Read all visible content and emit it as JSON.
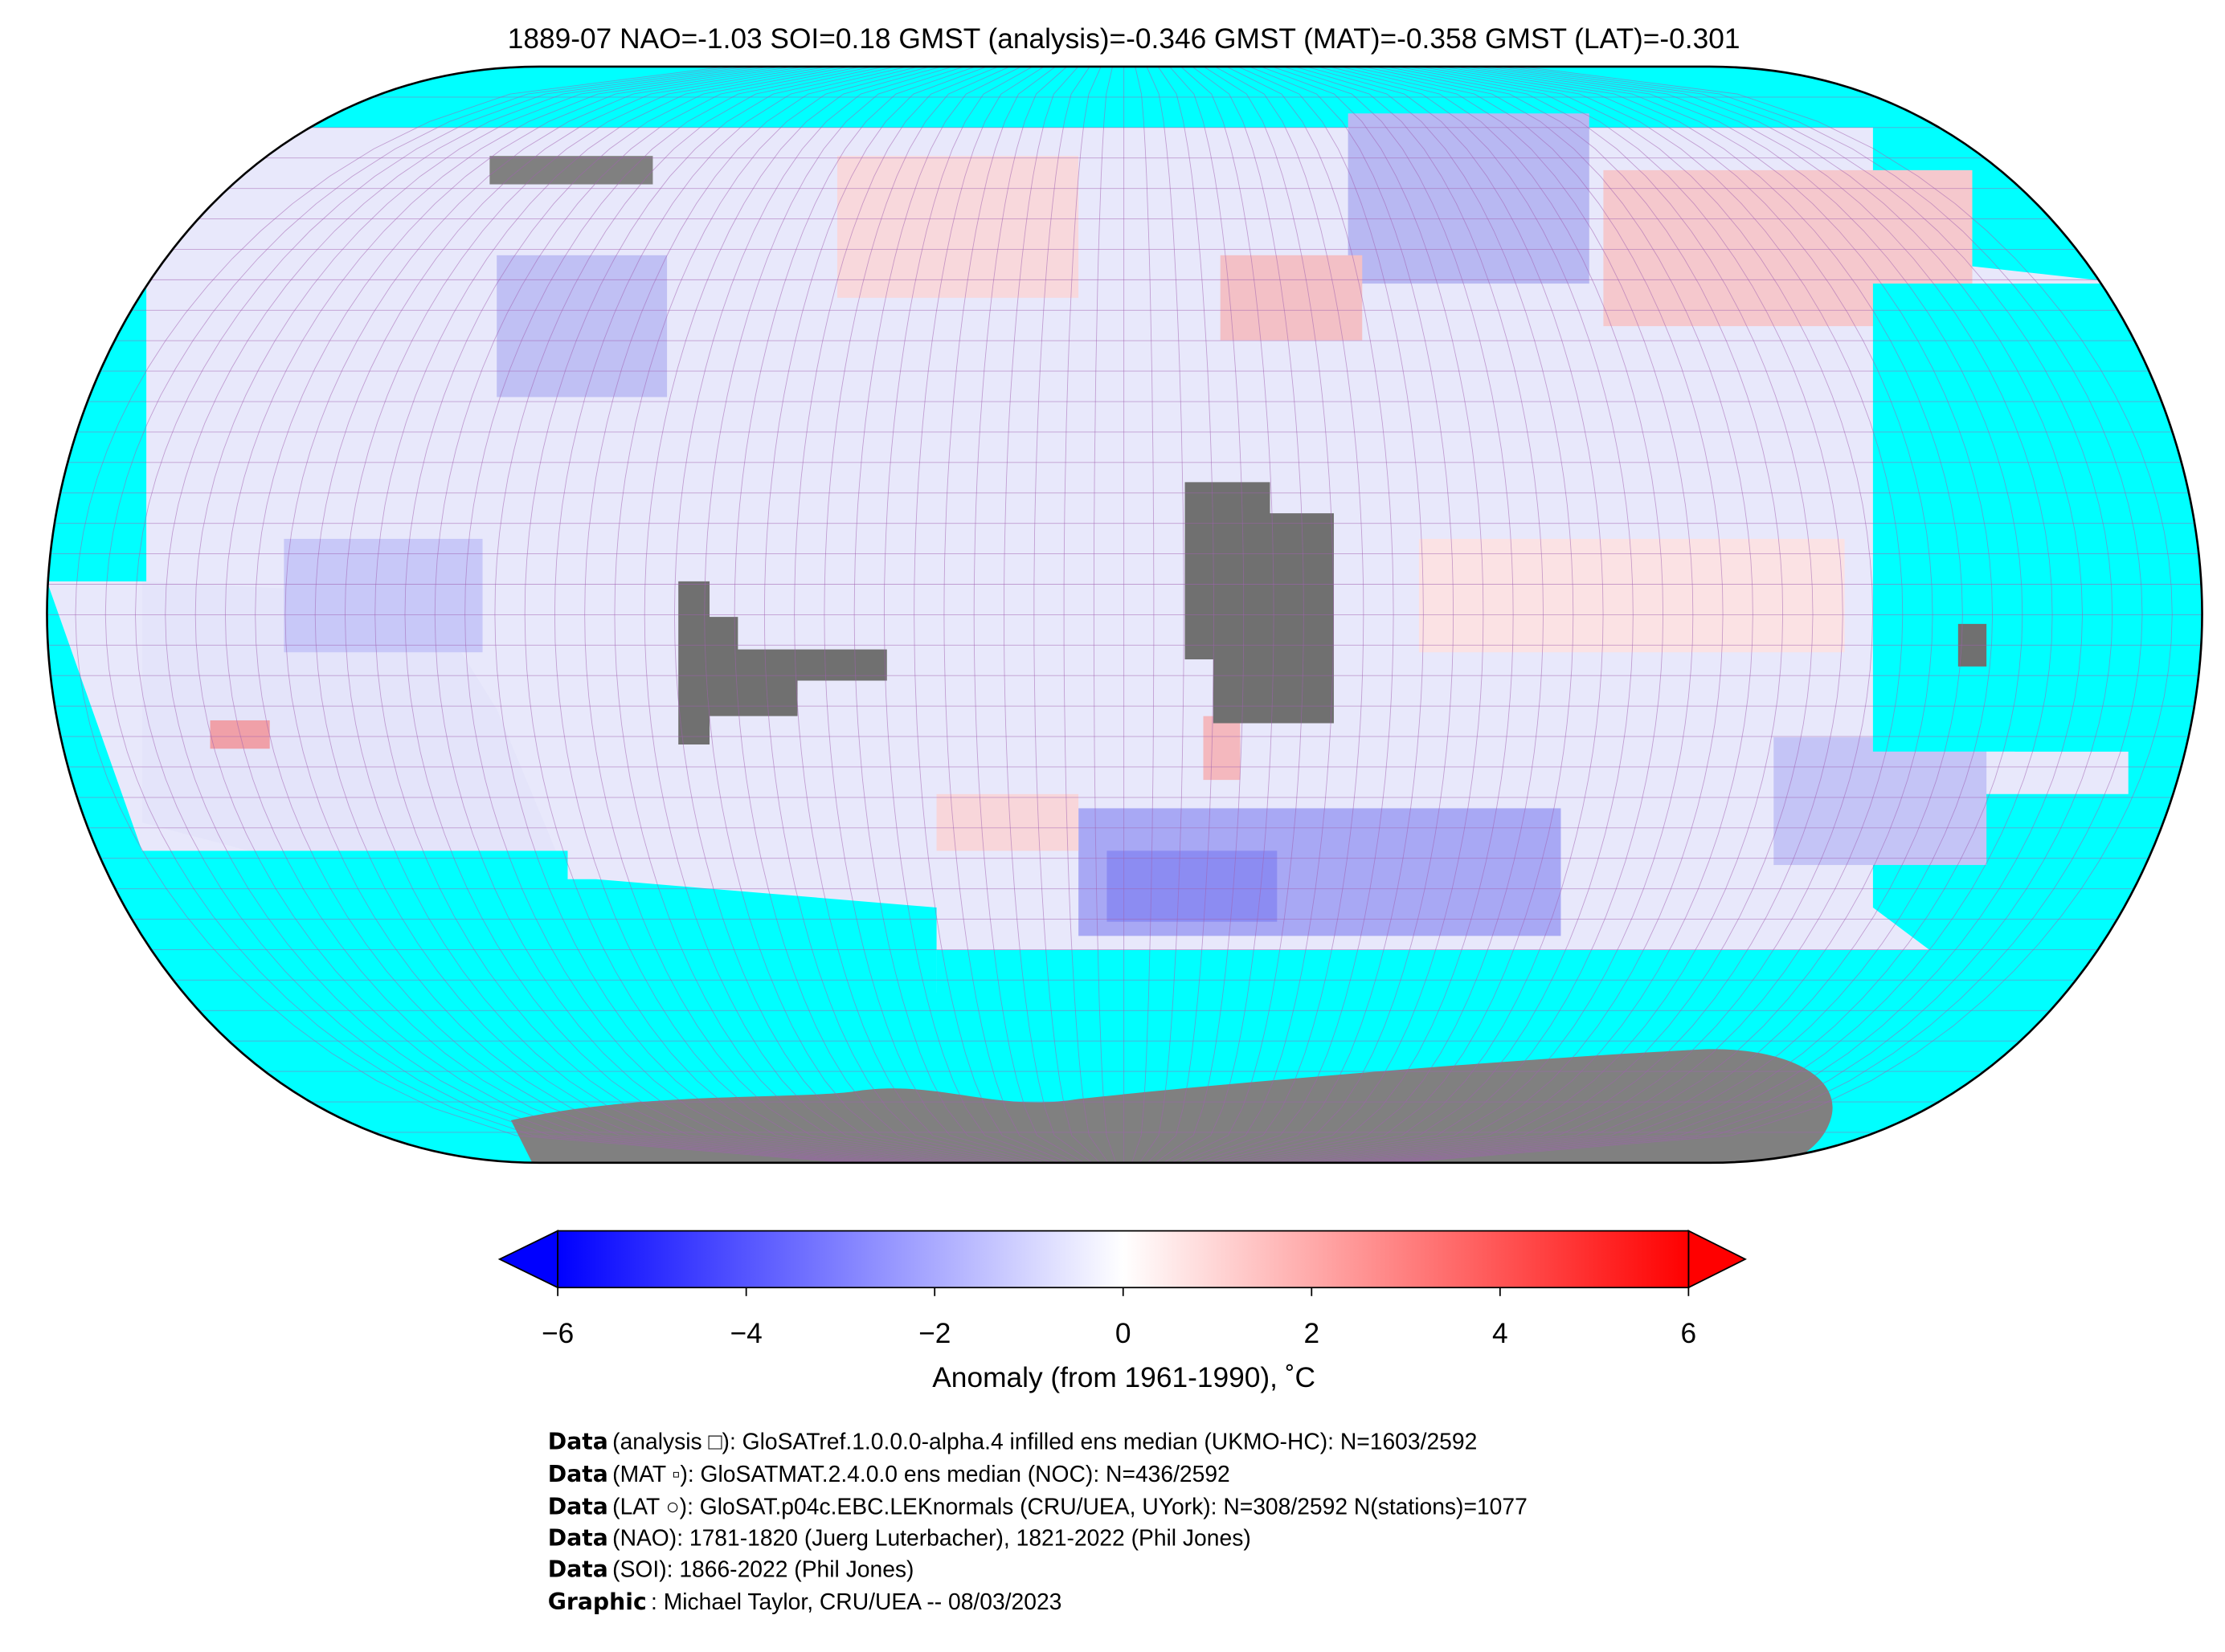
{
  "title": "1889-07 NAO=-1.03 SOI=0.18 GMST (analysis)=-0.346 GMST (MAT)=-0.358 GMST (LAT)=-0.301",
  "colorbar": {
    "label": "Anomaly (from 1961-1990), ˚C",
    "lim": [
      -6,
      6
    ],
    "colors": [
      "#0000ff",
      "#ffffff",
      "#ff0000"
    ],
    "ticks": [
      {
        "value": -6,
        "label": "−6"
      },
      {
        "value": -4,
        "label": "−4"
      },
      {
        "value": -2,
        "label": "−2"
      },
      0,
      2,
      4,
      6
    ]
  },
  "footer": [
    {
      "key": "Data",
      "text": "(analysis □): GloSATref.1.0.0.0-alpha.4 infilled ens median (UKMO-HC): N=1603/2592"
    },
    {
      "key": "Data",
      "text": "(MAT ▫): GloSATMAT.2.4.0.0 ens median (NOC): N=436/2592"
    },
    {
      "key": "Data",
      "text": "(LAT ○): GloSAT.p04c.EBC.LEKnormals (CRU/UEA, UYork): N=308/2592 N(stations)=1077"
    },
    {
      "key": "Data",
      "text": "(NAO): 1781-1820 (Juerg Luterbacher), 1821-2022 (Phil Jones)"
    },
    {
      "key": "Data",
      "text": "(SOI): 1866-2022 (Phil Jones)"
    },
    {
      "key": "Graphic",
      "text": ": Michael Taylor, CRU/UEA -- 08/03/2023"
    }
  ]
}
